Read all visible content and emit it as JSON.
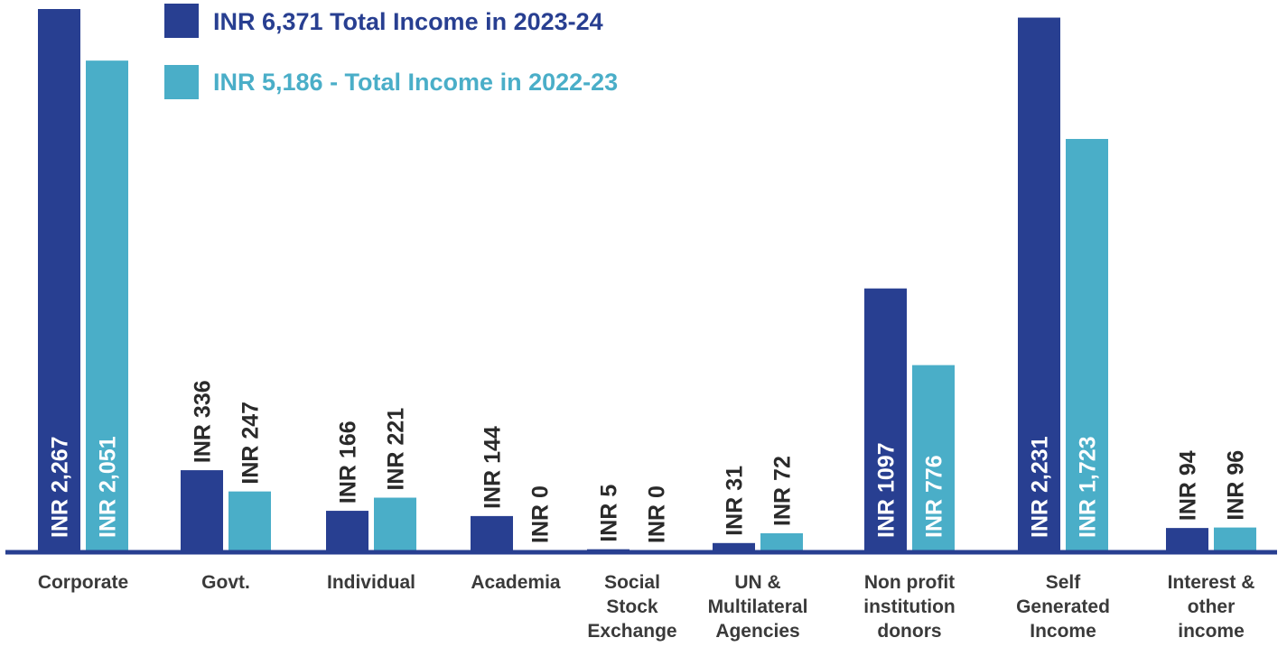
{
  "chart_data": {
    "type": "bar",
    "categories": [
      [
        "Corporate"
      ],
      [
        "Govt."
      ],
      [
        "Individual"
      ],
      [
        "Academia"
      ],
      [
        "Social",
        "Stock",
        "Exchange"
      ],
      [
        "UN &",
        "Multilateral",
        "Agencies"
      ],
      [
        "Non profit",
        "institution",
        "donors"
      ],
      [
        "Self",
        "Generated",
        "Income"
      ],
      [
        "Interest &",
        "other",
        "income"
      ]
    ],
    "series": [
      {
        "name": "INR 6,371 Total Income in 2023-24",
        "color": "#283f91",
        "values": [
          2267,
          336,
          166,
          144,
          5,
          31,
          1097,
          2231,
          94
        ],
        "labels": [
          "INR 2,267",
          "INR 336",
          "INR 166",
          "INR 144",
          "INR 5",
          "INR 31",
          "INR 1097",
          "INR 2,231",
          "INR 94"
        ]
      },
      {
        "name": "INR 5,186 - Total Income in 2022-23",
        "color": "#4aaec8",
        "values": [
          2051,
          247,
          221,
          0,
          0,
          72,
          776,
          1723,
          96
        ],
        "labels": [
          "INR 2,051",
          "INR 247",
          "INR 221",
          "INR 0",
          "INR 0",
          "INR 72",
          "INR 776",
          "INR 1,723",
          "INR 96"
        ]
      }
    ],
    "grid": false,
    "legend": "top-left"
  }
}
